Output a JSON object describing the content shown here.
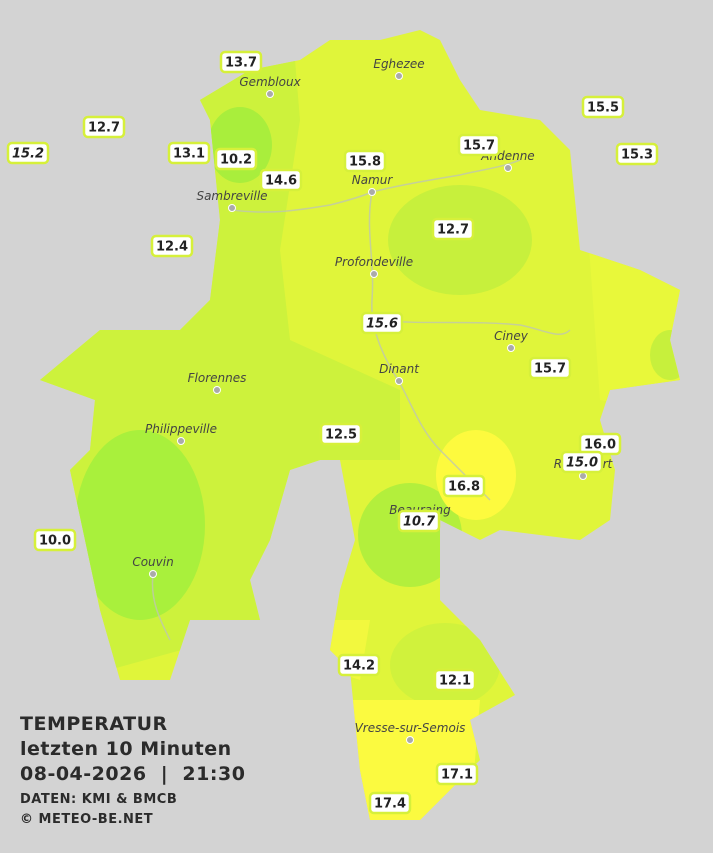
{
  "map": {
    "title": "TEMPERATUR",
    "subtitle": "letzten 10 Minuten",
    "timestamp": "08-04-2026  |  21:30",
    "source": "DATEN: KMI & BMCB",
    "copyright": "© METEO-BE.NET",
    "cities": [
      "Eghezee",
      "Gembloux",
      "Andenne",
      "Namur",
      "Sambreville",
      "Profondeville",
      "Ciney",
      "Dinant",
      "Florennes",
      "Philippeville",
      "Beauraing",
      "Rochefort",
      "Couvin",
      "Vresse-sur-Semois"
    ],
    "stations": [
      {
        "label": "13.7"
      },
      {
        "label": "12.7"
      },
      {
        "label": "15.2",
        "italic": true
      },
      {
        "label": "13.1"
      },
      {
        "label": "10.2"
      },
      {
        "label": "14.6"
      },
      {
        "label": "15.8"
      },
      {
        "label": "15.7"
      },
      {
        "label": "15.5"
      },
      {
        "label": "15.3"
      },
      {
        "label": "12.4"
      },
      {
        "label": "12.7"
      },
      {
        "label": "15.6",
        "italic": true
      },
      {
        "label": "15.7"
      },
      {
        "label": "12.5"
      },
      {
        "label": "16.0"
      },
      {
        "label": "15.0",
        "italic": true
      },
      {
        "label": "16.8"
      },
      {
        "label": "10.7",
        "italic": true
      },
      {
        "label": "10.0"
      },
      {
        "label": "14.2"
      },
      {
        "label": "12.1"
      },
      {
        "label": "17.1"
      },
      {
        "label": "17.4"
      }
    ]
  }
}
